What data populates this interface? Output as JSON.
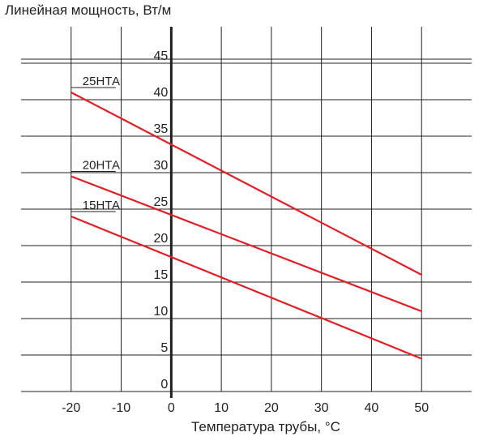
{
  "chart_data": {
    "type": "line",
    "ylabel": "Линейная мощность, Вт/м",
    "xlabel": "Температура трубы, °С",
    "xlim": [
      -30,
      60
    ],
    "ylim": [
      0,
      50
    ],
    "x_ticks": [
      -20,
      -10,
      0,
      10,
      20,
      30,
      40,
      50
    ],
    "y_ticks": [
      0,
      5,
      10,
      15,
      20,
      25,
      30,
      35,
      40,
      45
    ],
    "grid": true,
    "line_color": "#e31e24",
    "series": [
      {
        "name": "25НТА",
        "x": [
          -20,
          50
        ],
        "y": [
          41,
          16
        ]
      },
      {
        "name": "20НТА",
        "x": [
          -20,
          50
        ],
        "y": [
          29.5,
          11
        ]
      },
      {
        "name": "15НТА",
        "x": [
          -20,
          50
        ],
        "y": [
          24,
          4.5
        ]
      }
    ]
  }
}
